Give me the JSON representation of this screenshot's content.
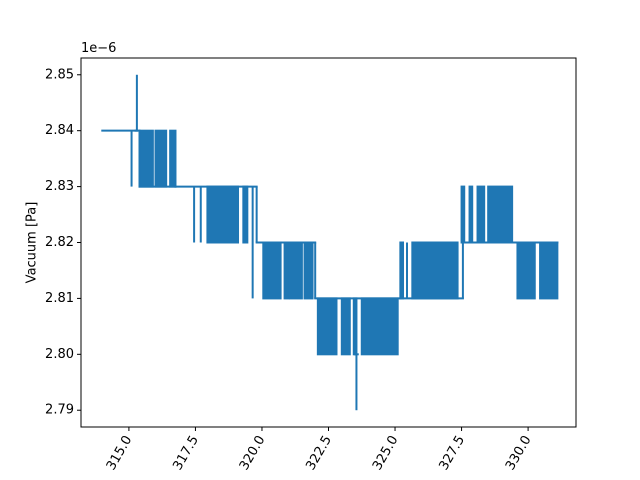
{
  "chart_data": {
    "type": "line",
    "title": "",
    "xlabel": "",
    "ylabel": "Vacuum [Pa]",
    "offset_label": "1e−6",
    "xlim": [
      313.2,
      331.8
    ],
    "ylim": [
      2.787,
      2.853
    ],
    "x_ticks": [
      {
        "value": 315.0,
        "label": "315.0"
      },
      {
        "value": 317.5,
        "label": "317.5"
      },
      {
        "value": 320.0,
        "label": "320.0"
      },
      {
        "value": 322.5,
        "label": "322.5"
      },
      {
        "value": 325.0,
        "label": "325.0"
      },
      {
        "value": 327.5,
        "label": "327.5"
      },
      {
        "value": 330.0,
        "label": "330.0"
      }
    ],
    "y_ticks": [
      {
        "value": 2.79,
        "label": "2.79"
      },
      {
        "value": 2.8,
        "label": "2.80"
      },
      {
        "value": 2.81,
        "label": "2.81"
      },
      {
        "value": 2.82,
        "label": "2.82"
      },
      {
        "value": 2.83,
        "label": "2.83"
      },
      {
        "value": 2.84,
        "label": "2.84"
      },
      {
        "value": 2.85,
        "label": "2.85"
      }
    ],
    "grid": false,
    "legend": "none",
    "series": [
      {
        "color": "#1f77b4",
        "segments": [
          {
            "x_start": 314.0,
            "x_end": 315.4,
            "base": 2.84,
            "alt": 2.83,
            "flicker": [
              [
                315.1,
                315.1
              ]
            ]
          },
          {
            "x_start": 315.25,
            "x_end": 315.3,
            "base": 2.84,
            "alt": 2.85,
            "flicker": [
              [
                315.3,
                315.3
              ]
            ]
          },
          {
            "x_start": 315.4,
            "x_end": 316.75,
            "base": 2.83,
            "alt": 2.84,
            "flicker": [
              [
                315.4,
                315.9
              ],
              [
                316.0,
                316.4
              ],
              [
                316.55,
                316.75
              ]
            ]
          },
          {
            "x_start": 316.75,
            "x_end": 319.8,
            "base": 2.83,
            "alt": 2.82,
            "flicker": [
              [
                317.45,
                317.5
              ],
              [
                317.7,
                317.75
              ],
              [
                317.95,
                319.1
              ],
              [
                319.3,
                319.45
              ],
              [
                319.65,
                319.7
              ]
            ]
          },
          {
            "x_start": 319.8,
            "x_end": 322.0,
            "base": 2.82,
            "alt": 2.81,
            "flicker": [
              [
                319.65,
                319.7
              ],
              [
                320.05,
                320.7
              ],
              [
                320.85,
                321.0
              ],
              [
                321.05,
                321.5
              ],
              [
                321.6,
                321.9
              ]
            ]
          },
          {
            "x_start": 322.0,
            "x_end": 325.2,
            "base": 2.81,
            "alt": 2.8,
            "flicker": [
              [
                322.1,
                322.8
              ],
              [
                323.0,
                323.3
              ],
              [
                323.45,
                323.55
              ],
              [
                323.75,
                325.1
              ]
            ]
          },
          {
            "x_start": 323.5,
            "x_end": 323.6,
            "base": 2.8,
            "alt": 2.79,
            "flicker": [
              [
                323.55,
                323.55
              ]
            ]
          },
          {
            "x_start": 325.2,
            "x_end": 327.55,
            "base": 2.81,
            "alt": 2.82,
            "flicker": [
              [
                325.2,
                325.3
              ],
              [
                325.45,
                325.5
              ],
              [
                325.65,
                327.35
              ]
            ]
          },
          {
            "x_start": 327.55,
            "x_end": 329.5,
            "base": 2.82,
            "alt": 2.83,
            "flicker": [
              [
                327.5,
                327.6
              ],
              [
                327.8,
                327.9
              ],
              [
                328.1,
                328.35
              ],
              [
                328.5,
                329.4
              ]
            ]
          },
          {
            "x_start": 329.5,
            "x_end": 331.1,
            "base": 2.82,
            "alt": 2.81,
            "flicker": [
              [
                329.6,
                330.25
              ],
              [
                330.45,
                331.1
              ]
            ]
          }
        ]
      }
    ]
  }
}
